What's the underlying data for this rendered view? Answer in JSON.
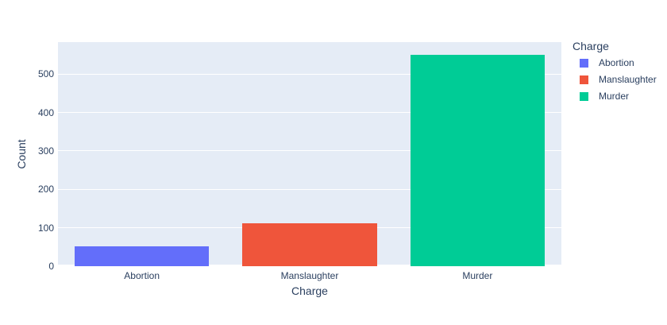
{
  "figure": {
    "background": "#ffffff",
    "plot_background": "#e5ecf6",
    "grid_color": "#ffffff",
    "text_color": "#2a3f5f"
  },
  "chart_data": {
    "type": "bar",
    "categories": [
      "Abortion",
      "Manslaughter",
      "Murder"
    ],
    "values": [
      52,
      112,
      550
    ],
    "colors": [
      "#636efa",
      "#ef553b",
      "#00cc96"
    ],
    "title": "",
    "xlabel": "Charge",
    "ylabel": "Count",
    "ylim": [
      0,
      583
    ],
    "yticks": [
      0,
      100,
      200,
      300,
      400,
      500
    ],
    "grid": true,
    "legend": {
      "title": "Charge",
      "position": "right",
      "entries": [
        {
          "label": "Abortion",
          "color": "#636efa"
        },
        {
          "label": "Manslaughter",
          "color": "#ef553b"
        },
        {
          "label": "Murder",
          "color": "#00cc96"
        }
      ]
    }
  }
}
